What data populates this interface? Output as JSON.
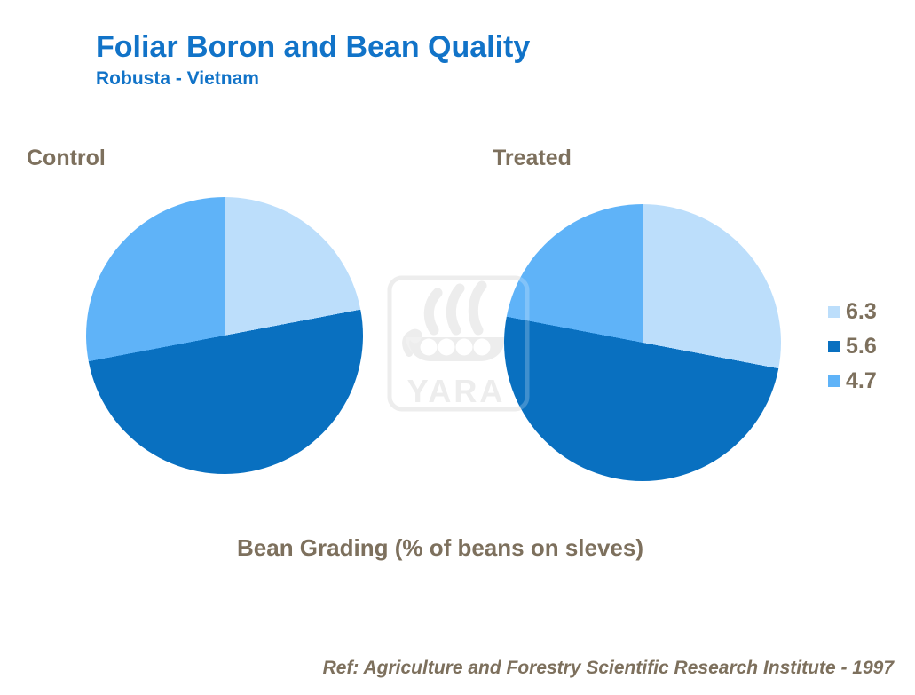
{
  "header": {
    "title": "Foliar Boron and Bean Quality",
    "subtitle": "Robusta - Vietnam"
  },
  "chart_data": [
    {
      "type": "pie",
      "title": "Control",
      "labels": [
        "6.3",
        "5.6",
        "4.7"
      ],
      "values": [
        22,
        50,
        28
      ],
      "unit": "%",
      "colors": [
        "#BCDEFB",
        "#0970C0",
        "#5FB3F8"
      ],
      "start_angle_deg": 0,
      "direction": "clockwise"
    },
    {
      "type": "pie",
      "title": "Treated",
      "labels": [
        "6.3",
        "5.6",
        "4.7"
      ],
      "values": [
        28,
        50,
        22
      ],
      "unit": "%",
      "colors": [
        "#BCDEFB",
        "#0970C0",
        "#5FB3F8"
      ],
      "start_angle_deg": 0,
      "direction": "clockwise"
    }
  ],
  "legend": {
    "position": "right",
    "items": [
      {
        "label": "6.3",
        "color": "#BCDEFB"
      },
      {
        "label": "5.6",
        "color": "#0970C0"
      },
      {
        "label": "4.7",
        "color": "#5FB3F8"
      }
    ]
  },
  "caption": {
    "text": "Bean Grading (% of beans on sleves)"
  },
  "footer": {
    "text": "Ref: Agriculture and Forestry Scientific Research Institute - 1997"
  },
  "watermark": {
    "text": "YARA"
  },
  "colors": {
    "accent_blue": "#1173C8",
    "text_brown": "#7D705D",
    "watermark_gray": "#E8E8E8"
  }
}
